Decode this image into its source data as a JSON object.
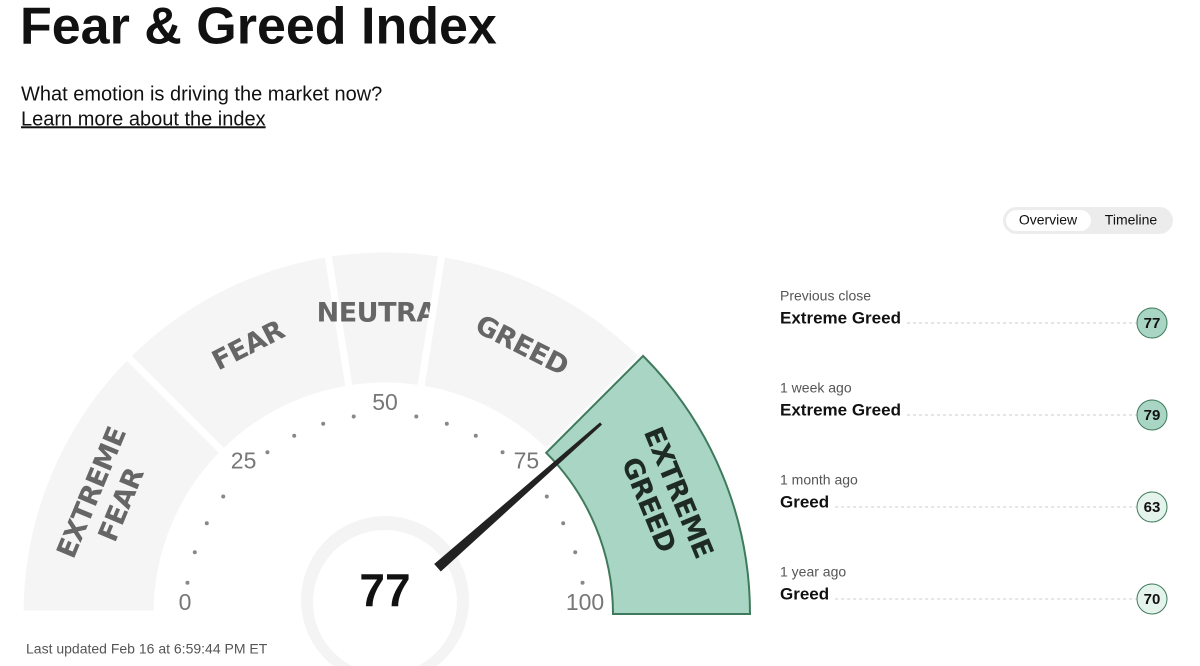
{
  "header": {
    "title": "Fear & Greed Index",
    "subtitle": "What emotion is driving the market now?",
    "link": "Learn more about the index"
  },
  "tabs": [
    "Overview",
    "Timeline"
  ],
  "gauge": {
    "value": 77,
    "ticks": [
      0,
      25,
      50,
      75,
      100
    ],
    "segments": [
      {
        "lines": [
          "EXTREME",
          "FEAR"
        ]
      },
      {
        "lines": [
          "FEAR"
        ]
      },
      {
        "lines": [
          "NEUTRAL"
        ]
      },
      {
        "lines": [
          "GREED"
        ]
      },
      {
        "lines": [
          "EXTREME",
          "GREED"
        ],
        "color": "#a8d5c4"
      }
    ]
  },
  "history": [
    {
      "label": "Previous close",
      "rating": "Extreme Greed",
      "value": 77,
      "color": "#a8d5c4"
    },
    {
      "label": "1 week ago",
      "rating": "Extreme Greed",
      "value": 79,
      "color": "#a8d5c4"
    },
    {
      "label": "1 month ago",
      "rating": "Greed",
      "value": 63,
      "color": "#e4f3ec"
    },
    {
      "label": "1 year ago",
      "rating": "Greed",
      "value": 70,
      "color": "#e4f3ec"
    }
  ],
  "footer": "Last updated Feb 16 at 6:59:44 PM ET"
}
